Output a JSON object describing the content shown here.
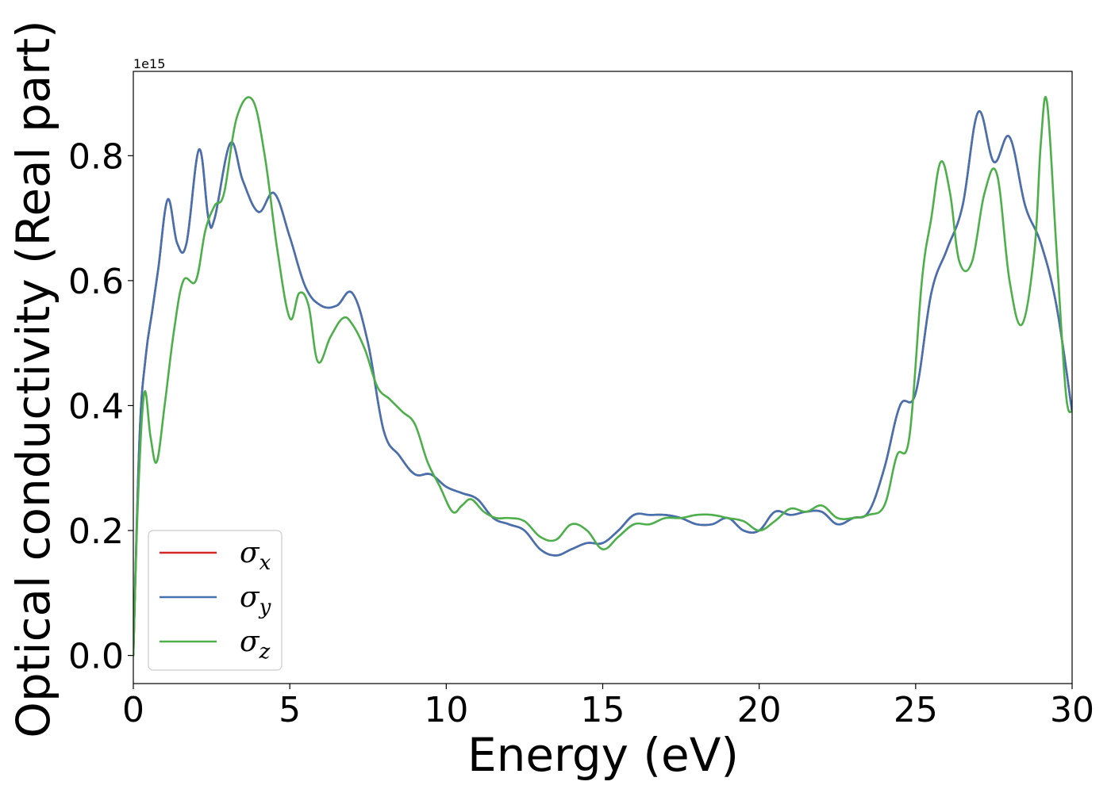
{
  "chart_data": {
    "type": "line",
    "title": "",
    "xlabel": "Energy (eV)",
    "ylabel": "Optical conductivity (Real part)",
    "y_offset_text": "1e15",
    "xlim": [
      0,
      30
    ],
    "ylim": [
      -0.045,
      0.935
    ],
    "xticks": [
      0,
      5,
      10,
      15,
      20,
      25,
      30
    ],
    "xtick_labels": [
      "0",
      "5",
      "10",
      "15",
      "20",
      "25",
      "30"
    ],
    "yticks": [
      0.0,
      0.2,
      0.4,
      0.6,
      0.8
    ],
    "ytick_labels": [
      "0.0",
      "0.2",
      "0.4",
      "0.6",
      "0.8"
    ],
    "grid": false,
    "legend_position": "lower-left",
    "series": [
      {
        "name": "σx",
        "base": "σ",
        "sub": "x",
        "color": "#d62728",
        "x": [
          0,
          0.2,
          0.4,
          0.6,
          0.8,
          1.1,
          1.4,
          1.7,
          2.1,
          2.4,
          2.6,
          3.1,
          3.5,
          4.0,
          4.5,
          5.0,
          5.5,
          6.0,
          6.5,
          7.0,
          7.5,
          8.0,
          8.5,
          9.0,
          9.5,
          10.0,
          10.5,
          11.0,
          11.5,
          12.0,
          12.5,
          13.0,
          13.5,
          14.0,
          14.5,
          15.0,
          15.5,
          16.0,
          16.5,
          17.0,
          17.5,
          18.0,
          18.5,
          19.0,
          19.5,
          20.0,
          20.5,
          21.0,
          21.5,
          22.0,
          22.5,
          23.0,
          23.5,
          24.0,
          24.5,
          25.0,
          25.5,
          26.0,
          26.5,
          27.0,
          27.5,
          28.0,
          28.5,
          29.0,
          29.5,
          30.0
        ],
        "values": [
          0.0,
          0.35,
          0.48,
          0.55,
          0.62,
          0.73,
          0.66,
          0.66,
          0.81,
          0.7,
          0.7,
          0.82,
          0.76,
          0.71,
          0.74,
          0.67,
          0.59,
          0.56,
          0.56,
          0.58,
          0.5,
          0.36,
          0.32,
          0.29,
          0.29,
          0.27,
          0.26,
          0.25,
          0.22,
          0.21,
          0.2,
          0.17,
          0.16,
          0.17,
          0.18,
          0.18,
          0.2,
          0.225,
          0.225,
          0.225,
          0.22,
          0.21,
          0.21,
          0.22,
          0.2,
          0.2,
          0.23,
          0.225,
          0.23,
          0.23,
          0.21,
          0.22,
          0.23,
          0.3,
          0.4,
          0.42,
          0.58,
          0.65,
          0.72,
          0.87,
          0.79,
          0.83,
          0.72,
          0.66,
          0.56,
          0.39
        ]
      },
      {
        "name": "σy",
        "base": "σ",
        "sub": "y",
        "color": "#4472b0",
        "x": [
          0,
          0.2,
          0.4,
          0.6,
          0.8,
          1.1,
          1.4,
          1.7,
          2.1,
          2.4,
          2.6,
          3.1,
          3.5,
          4.0,
          4.5,
          5.0,
          5.5,
          6.0,
          6.5,
          7.0,
          7.5,
          8.0,
          8.5,
          9.0,
          9.5,
          10.0,
          10.5,
          11.0,
          11.5,
          12.0,
          12.5,
          13.0,
          13.5,
          14.0,
          14.5,
          15.0,
          15.5,
          16.0,
          16.5,
          17.0,
          17.5,
          18.0,
          18.5,
          19.0,
          19.5,
          20.0,
          20.5,
          21.0,
          21.5,
          22.0,
          22.5,
          23.0,
          23.5,
          24.0,
          24.5,
          25.0,
          25.5,
          26.0,
          26.5,
          27.0,
          27.5,
          28.0,
          28.5,
          29.0,
          29.5,
          30.0
        ],
        "values": [
          0.0,
          0.35,
          0.48,
          0.55,
          0.62,
          0.73,
          0.66,
          0.66,
          0.81,
          0.7,
          0.7,
          0.82,
          0.76,
          0.71,
          0.74,
          0.67,
          0.59,
          0.56,
          0.56,
          0.58,
          0.5,
          0.36,
          0.32,
          0.29,
          0.29,
          0.27,
          0.26,
          0.25,
          0.22,
          0.21,
          0.2,
          0.17,
          0.16,
          0.17,
          0.18,
          0.18,
          0.2,
          0.225,
          0.225,
          0.225,
          0.22,
          0.21,
          0.21,
          0.22,
          0.2,
          0.2,
          0.23,
          0.225,
          0.23,
          0.23,
          0.21,
          0.22,
          0.23,
          0.3,
          0.4,
          0.42,
          0.58,
          0.65,
          0.72,
          0.87,
          0.79,
          0.83,
          0.72,
          0.66,
          0.56,
          0.39
        ]
      },
      {
        "name": "σz",
        "base": "σ",
        "sub": "z",
        "color": "#4daf4a",
        "x": [
          0,
          0.15,
          0.35,
          0.55,
          0.75,
          1.0,
          1.3,
          1.6,
          2.0,
          2.3,
          2.6,
          2.9,
          3.3,
          3.8,
          4.2,
          4.6,
          5.0,
          5.3,
          5.6,
          5.9,
          6.3,
          6.7,
          7.0,
          7.4,
          7.8,
          8.2,
          8.6,
          9.0,
          9.4,
          9.8,
          10.2,
          10.5,
          10.8,
          11.2,
          11.6,
          12.0,
          12.5,
          13.0,
          13.5,
          14.0,
          14.5,
          15.0,
          15.5,
          16.0,
          16.5,
          17.0,
          17.5,
          18.0,
          18.5,
          19.0,
          19.5,
          20.0,
          20.5,
          21.0,
          21.5,
          22.0,
          22.5,
          23.0,
          23.5,
          24.0,
          24.4,
          24.8,
          25.2,
          25.5,
          25.8,
          26.1,
          26.4,
          26.8,
          27.2,
          27.6,
          28.0,
          28.4,
          28.8,
          29.0,
          29.2,
          29.5,
          29.8,
          30.0
        ],
        "values": [
          0.0,
          0.25,
          0.42,
          0.35,
          0.31,
          0.4,
          0.52,
          0.6,
          0.6,
          0.68,
          0.72,
          0.74,
          0.86,
          0.89,
          0.8,
          0.65,
          0.54,
          0.58,
          0.56,
          0.47,
          0.51,
          0.54,
          0.53,
          0.49,
          0.43,
          0.41,
          0.39,
          0.37,
          0.31,
          0.27,
          0.23,
          0.24,
          0.25,
          0.23,
          0.22,
          0.22,
          0.215,
          0.19,
          0.185,
          0.21,
          0.2,
          0.17,
          0.19,
          0.21,
          0.21,
          0.22,
          0.22,
          0.225,
          0.225,
          0.22,
          0.215,
          0.2,
          0.215,
          0.235,
          0.23,
          0.24,
          0.22,
          0.22,
          0.225,
          0.24,
          0.32,
          0.35,
          0.6,
          0.7,
          0.79,
          0.74,
          0.63,
          0.63,
          0.74,
          0.77,
          0.6,
          0.53,
          0.65,
          0.82,
          0.885,
          0.65,
          0.42,
          0.39
        ]
      }
    ]
  }
}
